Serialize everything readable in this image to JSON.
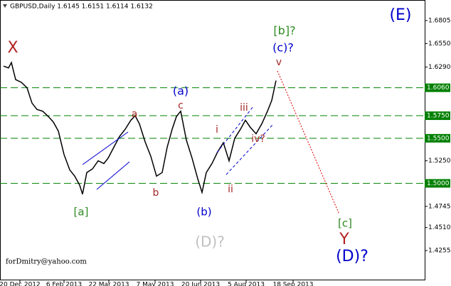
{
  "chart_data": {
    "type": "line",
    "title": "GBPUSD,Daily  1.6145 1.6151 1.6114 1.6132",
    "series": [
      {
        "name": "GBPUSD",
        "color": "#000000",
        "x": [
          2.5,
          6,
          8,
          11,
          15,
          19,
          22.5,
          26,
          30,
          34,
          37.5,
          41,
          45,
          49,
          52.5,
          56,
          58,
          61,
          65,
          69,
          73,
          76,
          80,
          84,
          88,
          92,
          95,
          98,
          102,
          106,
          110,
          114,
          117.5,
          121,
          124,
          127,
          131,
          135,
          139,
          142,
          145,
          149,
          153,
          157,
          161,
          165,
          169,
          172.5,
          176,
          180,
          184,
          188,
          191,
          194
        ],
        "values": [
          1.63,
          1.628,
          1.634,
          1.615,
          1.612,
          1.606,
          1.589,
          1.582,
          1.58,
          1.574,
          1.568,
          1.558,
          1.532,
          1.515,
          1.508,
          1.498,
          1.488,
          1.512,
          1.516,
          1.525,
          1.522,
          1.528,
          1.54,
          1.552,
          1.56,
          1.57,
          1.575,
          1.566,
          1.546,
          1.53,
          1.508,
          1.512,
          1.54,
          1.56,
          1.574,
          1.58,
          1.548,
          1.528,
          1.505,
          1.49,
          1.512,
          1.522,
          1.535,
          1.545,
          1.525,
          1.55,
          1.56,
          1.57,
          1.562,
          1.555,
          1.566,
          1.58,
          1.592,
          1.614
        ]
      }
    ],
    "xlim": [
      0,
      298.5
    ],
    "xticks": [
      {
        "value": 14,
        "label": "20 Dec 2012"
      },
      {
        "value": 45,
        "label": "6 Feb 2013"
      },
      {
        "value": 76.5,
        "label": "22 Mar 2013"
      },
      {
        "value": 109,
        "label": "7 May 2013"
      },
      {
        "value": 141,
        "label": "20 Jun 2013"
      },
      {
        "value": 173,
        "label": "5 Aug 2013"
      },
      {
        "value": 206,
        "label": "18 Sep 2013"
      }
    ],
    "ylim": [
      1.3925,
      1.7033
    ],
    "yticks": [
      1.6805,
      {
        "value": 1.655,
        "label": "1.6550"
      },
      {
        "value": 1.629,
        "label": "1.6290"
      },
      {
        "value": 1.525,
        "label": "1.5250"
      },
      1.4745,
      {
        "value": 1.451,
        "label": "1.4510"
      },
      1.4255
    ],
    "levels": [
      {
        "value": 1.606,
        "label": "1.6060"
      },
      {
        "value": 1.575,
        "label": "1.5750"
      },
      {
        "value": 1.55,
        "label": "1.5500"
      },
      {
        "value": 1.5,
        "label": "1.5000"
      }
    ],
    "level_color": "#008000",
    "annotations": [
      "X",
      "(E)",
      "[b]?",
      "(c)?",
      "v",
      "(a)",
      "a",
      "c",
      "iii",
      "i",
      "iv?",
      "b",
      "ii",
      "[a]",
      "(b)",
      "(D)?",
      "[c]",
      "Y",
      "(D)?",
      "forDmitry@yahoo.com"
    ]
  }
}
